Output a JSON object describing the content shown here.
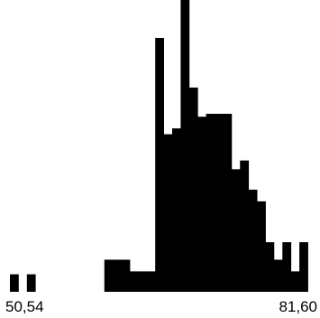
{
  "chart_data": {
    "type": "bar",
    "style": "histogram",
    "title": "",
    "xlabel": "",
    "ylabel": "",
    "x_range": [
      50.54,
      81.6
    ],
    "x_tick_labels": [
      "50,54",
      "81,60"
    ],
    "y_range": [
      0,
      1
    ],
    "grid": false,
    "legend": "none",
    "bar_color": "#000000",
    "background_color": "#ffffff",
    "bin_width": 0.88,
    "bins": [
      {
        "start": 50.54,
        "value": 0.06
      },
      {
        "start": 52.3,
        "value": 0.06
      },
      {
        "start": 60.34,
        "value": 0.11
      },
      {
        "start": 61.22,
        "value": 0.11
      },
      {
        "start": 62.1,
        "value": 0.11
      },
      {
        "start": 62.98,
        "value": 0.07
      },
      {
        "start": 63.86,
        "value": 0.07
      },
      {
        "start": 64.74,
        "value": 0.07
      },
      {
        "start": 65.62,
        "value": 0.87
      },
      {
        "start": 66.5,
        "value": 0.54
      },
      {
        "start": 67.38,
        "value": 0.56
      },
      {
        "start": 68.26,
        "value": 1.0
      },
      {
        "start": 69.14,
        "value": 0.7
      },
      {
        "start": 70.02,
        "value": 0.6
      },
      {
        "start": 70.9,
        "value": 0.61
      },
      {
        "start": 71.78,
        "value": 0.61
      },
      {
        "start": 72.66,
        "value": 0.61
      },
      {
        "start": 73.54,
        "value": 0.42
      },
      {
        "start": 74.42,
        "value": 0.45
      },
      {
        "start": 75.3,
        "value": 0.35
      },
      {
        "start": 76.18,
        "value": 0.31
      },
      {
        "start": 77.06,
        "value": 0.17
      },
      {
        "start": 77.94,
        "value": 0.11
      },
      {
        "start": 78.82,
        "value": 0.17
      },
      {
        "start": 79.7,
        "value": 0.07
      },
      {
        "start": 80.58,
        "value": 0.17
      }
    ]
  }
}
